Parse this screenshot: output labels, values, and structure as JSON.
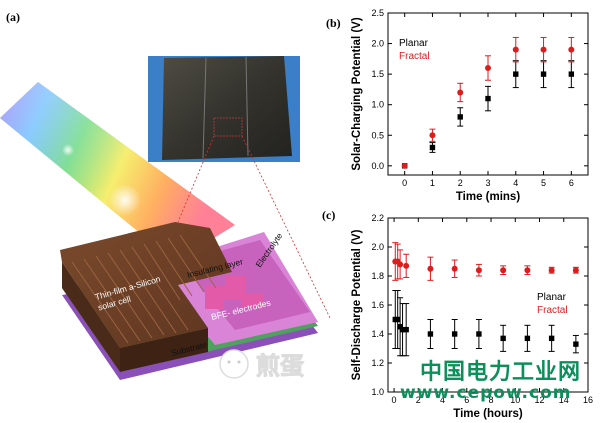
{
  "panels": {
    "a": {
      "label": "(a)",
      "labels": {
        "cell": "Thin-film a-Silicon\nsolar cell",
        "insulating": "Insulating layer",
        "electrolyte": "Electrolyte",
        "electrodes": "BFE- electrodes",
        "substrate": "Substrate"
      }
    },
    "b": {
      "label": "(b)"
    },
    "c": {
      "label": "(c)"
    }
  },
  "watermark": {
    "text_cn": "中国电力工业网",
    "url": "www.cepow.com",
    "logo_text": "煎蛋"
  },
  "chart_data": [
    {
      "id": "b",
      "type": "scatter",
      "title": "",
      "xlabel": "Time (mins)",
      "ylabel": "Solar-Charging Potential (V)",
      "xlim": [
        -0.6,
        6.6
      ],
      "ylim": [
        -0.15,
        2.5
      ],
      "xticks": [
        0,
        1,
        2,
        3,
        4,
        5,
        6
      ],
      "yticks": [
        0.0,
        0.5,
        1.0,
        1.5,
        2.0,
        2.5
      ],
      "ytick_labels": [
        "0.0",
        "0.5",
        "1.0",
        "1.5",
        "2.0",
        "2.5"
      ],
      "legend_position": "top-left",
      "series": [
        {
          "name": "Planar",
          "color": "#000000",
          "marker": "square",
          "x": [
            0,
            1,
            2,
            3,
            4,
            5,
            6
          ],
          "y": [
            0.0,
            0.3,
            0.8,
            1.1,
            1.5,
            1.5,
            1.5
          ],
          "err": [
            0.0,
            0.08,
            0.15,
            0.2,
            0.22,
            0.22,
            0.22
          ]
        },
        {
          "name": "Fractal",
          "color": "#dd1c1c",
          "marker": "circle",
          "x": [
            0,
            1,
            2,
            3,
            4,
            5,
            6
          ],
          "y": [
            0.0,
            0.5,
            1.2,
            1.6,
            1.9,
            1.9,
            1.9
          ],
          "err": [
            0.0,
            0.1,
            0.15,
            0.2,
            0.2,
            0.2,
            0.2
          ]
        }
      ]
    },
    {
      "id": "c",
      "type": "scatter",
      "title": "",
      "xlabel": "Time (hours)",
      "ylabel": "Self-Discharge Potential (V)",
      "xlim": [
        -0.5,
        16
      ],
      "ylim": [
        1.0,
        2.2
      ],
      "xticks": [
        0,
        2,
        4,
        6,
        8,
        10,
        12,
        14,
        16
      ],
      "yticks": [
        1.0,
        1.2,
        1.4,
        1.6,
        1.8,
        2.0,
        2.2
      ],
      "ytick_labels": [
        "1.0",
        "1.2",
        "1.4",
        "1.6",
        "1.8",
        "2.0",
        "2.2"
      ],
      "legend_position": "right",
      "series": [
        {
          "name": "Planar",
          "color": "#000000",
          "marker": "square",
          "x": [
            0.1,
            0.3,
            0.5,
            0.7,
            1.0,
            3.0,
            5.0,
            7.0,
            9.0,
            11.0,
            13.0,
            15.0
          ],
          "y": [
            1.5,
            1.5,
            1.45,
            1.43,
            1.43,
            1.4,
            1.4,
            1.4,
            1.37,
            1.37,
            1.37,
            1.33
          ],
          "err": [
            0.2,
            0.2,
            0.2,
            0.18,
            0.18,
            0.1,
            0.1,
            0.1,
            0.09,
            0.09,
            0.09,
            0.06
          ]
        },
        {
          "name": "Fractal",
          "color": "#dd1c1c",
          "marker": "circle",
          "x": [
            0.1,
            0.3,
            0.5,
            1.0,
            3.0,
            5.0,
            7.0,
            9.0,
            11.0,
            13.0,
            15.0
          ],
          "y": [
            1.9,
            1.9,
            1.88,
            1.87,
            1.85,
            1.85,
            1.84,
            1.84,
            1.84,
            1.84,
            1.84
          ],
          "err": [
            0.13,
            0.12,
            0.1,
            0.08,
            0.08,
            0.06,
            0.04,
            0.03,
            0.03,
            0.02,
            0.02
          ]
        }
      ]
    }
  ]
}
